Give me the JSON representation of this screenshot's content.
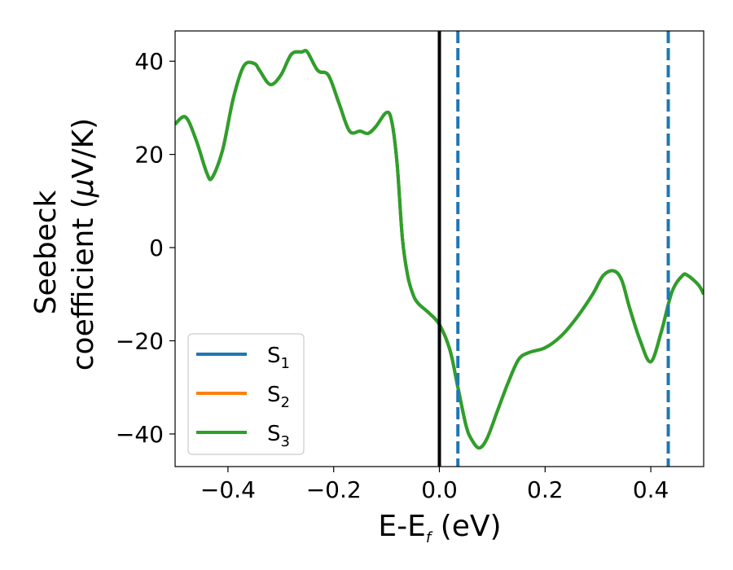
{
  "chart_data": {
    "type": "line",
    "xlabel": {
      "main": "E-E",
      "subscript": "f",
      "suffix": " (eV)"
    },
    "ylabel": {
      "line1": "Seebeck",
      "line2_prefix": "coefficient  (",
      "mu": "μ",
      "line2_suffix": "V/K)"
    },
    "xlim": [
      -0.5,
      0.5
    ],
    "ylim": [
      -47,
      46.5
    ],
    "xticks": [
      -0.4,
      -0.2,
      0.0,
      0.2,
      0.4
    ],
    "xtick_labels": [
      "−0.4",
      "−0.2",
      "0.0",
      "0.2",
      "0.4"
    ],
    "yticks": [
      40,
      20,
      0,
      -20,
      -40
    ],
    "ytick_labels": [
      "40",
      "20",
      "0",
      "−20",
      "−40"
    ],
    "legend_position": "lower-left",
    "series": [
      {
        "name": "S",
        "sub": "1",
        "color": "#1f77b4"
      },
      {
        "name": "S",
        "sub": "2",
        "color": "#ff7f0e"
      },
      {
        "name": "S",
        "sub": "3",
        "color": "#2ca02c"
      }
    ],
    "curve": {
      "x": [
        -0.5,
        -0.48,
        -0.46,
        -0.44,
        -0.43,
        -0.41,
        -0.39,
        -0.37,
        -0.35,
        -0.34,
        -0.32,
        -0.3,
        -0.28,
        -0.26,
        -0.25,
        -0.23,
        -0.21,
        -0.19,
        -0.17,
        -0.15,
        -0.135,
        -0.12,
        -0.1,
        -0.09,
        -0.08,
        -0.07,
        -0.06,
        -0.05,
        -0.04,
        -0.02,
        0.0,
        0.02,
        0.035,
        0.05,
        0.06,
        0.075,
        0.09,
        0.11,
        0.13,
        0.15,
        0.17,
        0.2,
        0.23,
        0.26,
        0.29,
        0.31,
        0.33,
        0.345,
        0.36,
        0.38,
        0.4,
        0.42,
        0.44,
        0.46,
        0.47,
        0.49,
        0.5
      ],
      "y": [
        26.5,
        28,
        23,
        16,
        15,
        21,
        32,
        39,
        39.5,
        38,
        35,
        37,
        41.5,
        42,
        42,
        38,
        37,
        31,
        25,
        25,
        24.5,
        26,
        29,
        27,
        18,
        2,
        -6,
        -10,
        -12,
        -14,
        -16.5,
        -22,
        -30,
        -38,
        -41,
        -43,
        -41,
        -35,
        -29,
        -24,
        -22.5,
        -21.5,
        -19,
        -15,
        -10,
        -6,
        -5,
        -7,
        -13,
        -20,
        -24.5,
        -18,
        -9.5,
        -6,
        -6,
        -8,
        -10
      ]
    },
    "vlines": [
      {
        "x": 0.0,
        "color": "#000000",
        "style": "solid"
      },
      {
        "x": 0.035,
        "color": "#1f77b4",
        "style": "dashed"
      },
      {
        "x": 0.433,
        "color": "#1f77b4",
        "style": "dashed"
      }
    ]
  }
}
